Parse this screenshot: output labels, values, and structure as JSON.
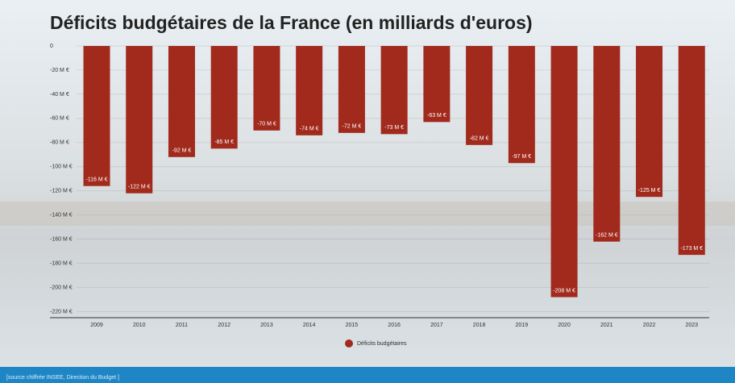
{
  "chart_data": {
    "type": "bar",
    "title": "Déficits budgétaires de la France (en milliards d'euros)",
    "categories": [
      "2009",
      "2010",
      "2011",
      "2012",
      "2013",
      "2014",
      "2015",
      "2016",
      "2017",
      "2018",
      "2019",
      "2020",
      "2021",
      "2022",
      "2023"
    ],
    "series": [
      {
        "name": "Déficits budgétaires",
        "color": "#a12a1c",
        "values": [
          -116,
          -122,
          -92,
          -85,
          -70,
          -74,
          -72,
          -73,
          -63,
          -82,
          -97,
          -208,
          -162,
          -125,
          -173
        ],
        "value_labels": [
          "-116 M €",
          "-122 M €",
          "-92 M €",
          "-85 M €",
          "-70 M €",
          "-74 M €",
          "-72 M €",
          "-73 M €",
          "-63 M €",
          "-82 M €",
          "-97 M €",
          "-208 M €",
          "-162 M €",
          "-125 M €",
          "-173 M €"
        ]
      }
    ],
    "ylim": [
      -225,
      0
    ],
    "yticks": [
      0,
      {
        "value": -20,
        "label": "-20 M €"
      },
      {
        "value": -40,
        "label": "-40 M €"
      },
      {
        "value": -60,
        "label": "-60 M €"
      },
      {
        "value": -80,
        "label": "-80 M €"
      },
      {
        "value": -100,
        "label": "-100 M €"
      },
      {
        "value": -120,
        "label": "-120 M €"
      },
      {
        "value": -140,
        "label": "-140 M €"
      },
      {
        "value": -160,
        "label": "-160 M €"
      },
      {
        "value": -180,
        "label": "-180 M €"
      },
      {
        "value": -200,
        "label": "-200 M €"
      },
      {
        "value": -220,
        "label": "-220 M €"
      }
    ],
    "grid": true,
    "legend": "bottom",
    "source": "[source chiffrée INSEE, Direction du Budget ]"
  }
}
